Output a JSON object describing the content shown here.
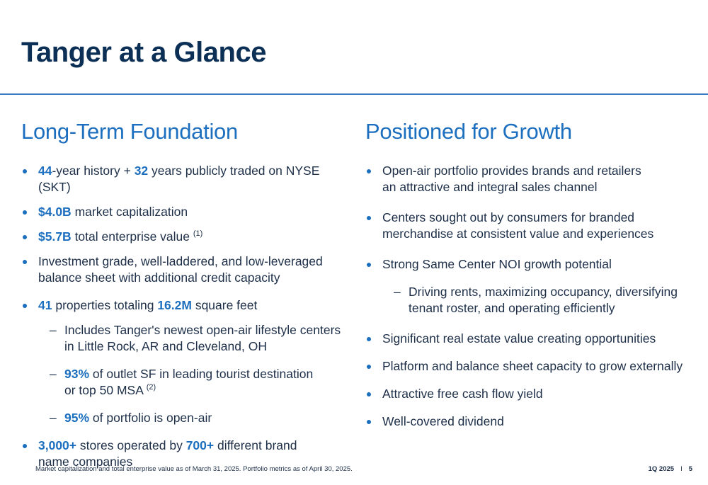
{
  "title": "Tanger at a Glance",
  "left": {
    "heading": "Long-Term Foundation",
    "b1": {
      "v1": "44",
      "t1": "-year history + ",
      "v2": "32",
      "t2": " years publicly traded on NYSE (SKT)"
    },
    "b2": {
      "v": "$4.0B",
      "t": " market capitalization"
    },
    "b3": {
      "v": "$5.7B",
      "t": " total enterprise value ",
      "fn": "(1)"
    },
    "b4": {
      "line1": "Investment grade, well-laddered, and low-leveraged",
      "line2": "balance sheet with additional credit capacity"
    },
    "b5": {
      "v1": "41",
      "t1": " properties totaling ",
      "v2": "16.2M",
      "t2": " square feet"
    },
    "s1": {
      "line1": "Includes Tanger's newest open-air lifestyle centers",
      "line2": "in Little Rock, AR and Cleveland, OH"
    },
    "s2": {
      "v": "93%",
      "t1": " of outlet SF in leading tourist destination",
      "line2": "or top 50 MSA ",
      "fn": "(2)"
    },
    "s3": {
      "v": "95%",
      "t": " of portfolio is open-air"
    },
    "b6": {
      "v1": "3,000+",
      "t1": " stores operated by ",
      "v2": "700+",
      "t2": " different brand",
      "line2": "name companies"
    }
  },
  "right": {
    "heading": "Positioned for Growth",
    "b1": {
      "line1": "Open-air portfolio provides brands and retailers",
      "line2": "an attractive and integral sales channel"
    },
    "b2": {
      "line1": "Centers sought out by consumers for branded",
      "line2": "merchandise at consistent value and experiences"
    },
    "b3": "Strong Same Center NOI growth potential",
    "s1": {
      "line1": "Driving rents, maximizing occupancy, diversifying",
      "line2": "tenant roster, and operating efficiently"
    },
    "b4": "Significant real estate value creating opportunities",
    "b5": "Platform and balance sheet capacity to grow externally",
    "b6": "Attractive free cash flow yield",
    "b7": "Well-covered dividend"
  },
  "footer": {
    "note": "Market capitalization and total enterprise value as of March 31, 2025. Portfolio metrics as of April 30, 2025.",
    "period": "1Q 2025",
    "separator": "I",
    "page": "5"
  },
  "colors": {
    "accent": "#1c6fbf",
    "title": "#0c2f55",
    "rule": "#3d7bbf"
  }
}
